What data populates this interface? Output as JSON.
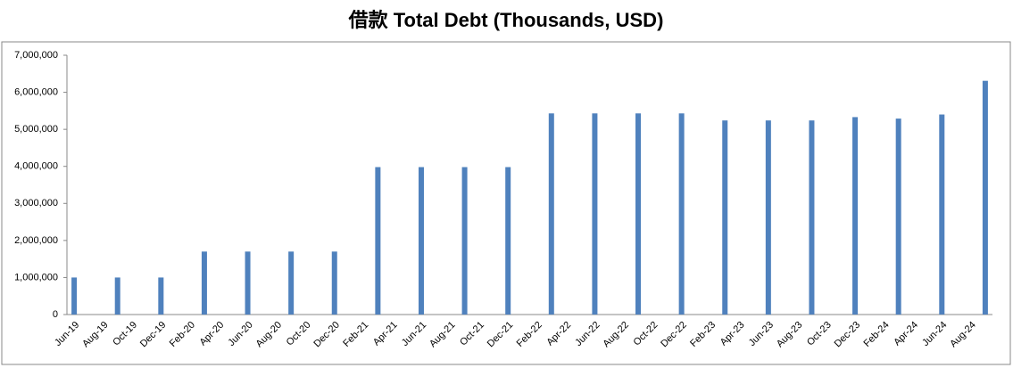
{
  "chart_data": {
    "type": "bar",
    "title": "借款 Total Debt (Thousands, USD)",
    "categories": [
      "Jun-19",
      null,
      "Aug-19",
      null,
      "Oct-19",
      null,
      "Dec-19",
      null,
      "Feb-20",
      null,
      "Apr-20",
      null,
      "Jun-20",
      null,
      "Aug-20",
      null,
      "Oct-20",
      null,
      "Dec-20",
      null,
      "Feb-21",
      null,
      "Apr-21",
      null,
      "Jun-21",
      null,
      "Aug-21",
      null,
      "Oct-21",
      null,
      "Dec-21",
      null,
      "Feb-22",
      null,
      "Apr-22",
      null,
      "Jun-22",
      null,
      "Aug-22",
      null,
      "Oct-22",
      null,
      "Dec-22",
      null,
      "Feb-23",
      null,
      "Apr-23",
      null,
      "Jun-23",
      null,
      "Aug-23",
      null,
      "Oct-23",
      null,
      "Dec-23",
      null,
      "Feb-24",
      null,
      "Apr-24",
      null,
      "Jun-24",
      null,
      "Aug-24",
      null
    ],
    "values": [
      1000000,
      null,
      null,
      1000000,
      null,
      null,
      1000000,
      null,
      null,
      1700000,
      null,
      null,
      1700000,
      null,
      null,
      1700000,
      null,
      null,
      1700000,
      null,
      null,
      3980000,
      null,
      null,
      3980000,
      null,
      null,
      3980000,
      null,
      null,
      3980000,
      null,
      null,
      5430000,
      null,
      null,
      5430000,
      null,
      null,
      5430000,
      null,
      null,
      5430000,
      null,
      null,
      5240000,
      null,
      null,
      5240000,
      null,
      null,
      5240000,
      null,
      null,
      5330000,
      null,
      null,
      5290000,
      null,
      null,
      5400000,
      null,
      null,
      6310000
    ],
    "color": "#4f81bd",
    "ylim": [
      0,
      7000000
    ],
    "yticks": [
      0,
      {
        "value": 1000000,
        "label": "1,000,000"
      },
      {
        "value": 2000000,
        "label": "2,000,000"
      },
      {
        "value": 3000000,
        "label": "3,000,000"
      },
      {
        "value": 4000000,
        "label": "4,000,000"
      },
      {
        "value": 5000000,
        "label": "5,000,000"
      },
      {
        "value": 6000000,
        "label": "6,000,000"
      },
      {
        "value": 7000000,
        "label": "7,000,000"
      }
    ],
    "grid": false
  }
}
